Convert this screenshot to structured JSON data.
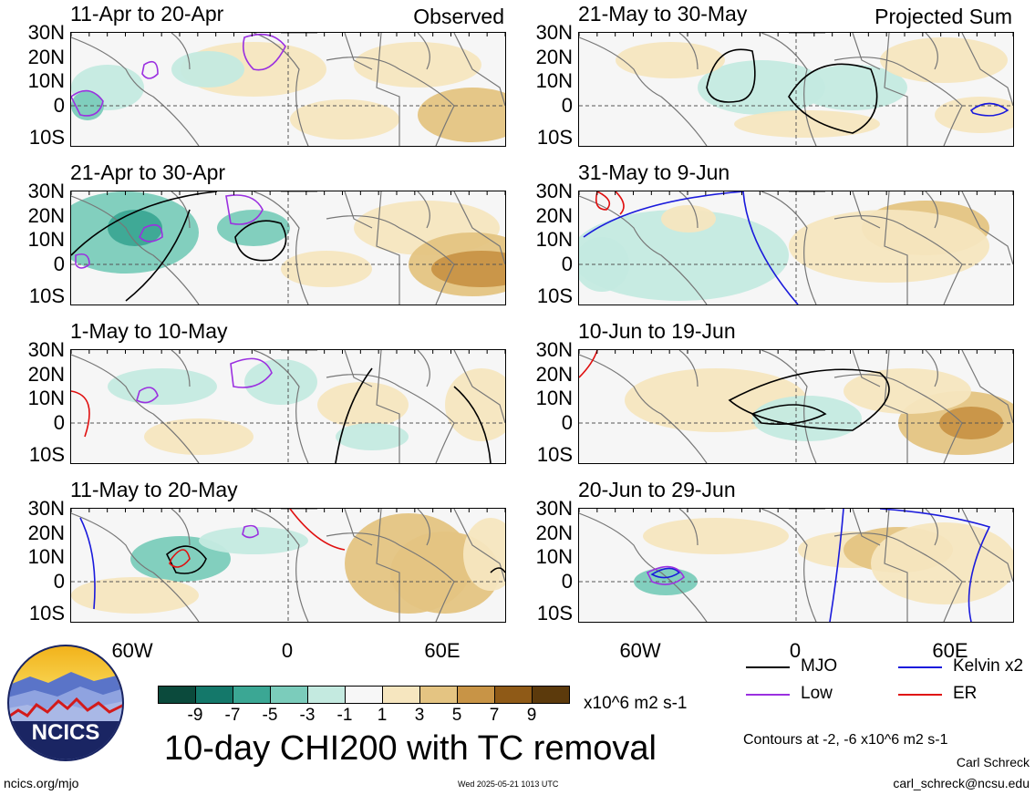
{
  "panels": [
    {
      "title": "11-Apr to 20-Apr",
      "tag": "Observed"
    },
    {
      "title": "21-Apr to 30-Apr",
      "tag": ""
    },
    {
      "title": "1-May to 10-May",
      "tag": ""
    },
    {
      "title": "11-May to 20-May",
      "tag": ""
    },
    {
      "title": "21-May to 30-May",
      "tag": "Projected Sum"
    },
    {
      "title": "31-May to 9-Jun",
      "tag": ""
    },
    {
      "title": "10-Jun to 19-Jun",
      "tag": ""
    },
    {
      "title": "20-Jun to 29-Jun",
      "tag": ""
    }
  ],
  "lat_labels": [
    "30N",
    "20N",
    "10N",
    "0",
    "10S"
  ],
  "lon_labels": [
    "60W",
    "0",
    "60E"
  ],
  "colorbar": {
    "labels": [
      "-9",
      "-7",
      "-5",
      "-3",
      "-1",
      "1",
      "3",
      "5",
      "7",
      "9"
    ],
    "colors": [
      "#0b4a3c",
      "#14786a",
      "#3ba794",
      "#7bccbb",
      "#c4eae0",
      "#f7f7f7",
      "#f6e6bf",
      "#e4c482",
      "#c89446",
      "#8f5a17",
      "#5c3a0c"
    ],
    "units": "x10^6 m2 s-1"
  },
  "legend": {
    "mjo": "MJO",
    "mjo_color": "#000000",
    "low": "Low",
    "low_color": "#9b30e0",
    "kelvin": "Kelvin x2",
    "kelvin_color": "#1a1adc",
    "er": "ER",
    "er_color": "#e01010"
  },
  "contours_note": "Contours at -2, -6 x10^6 m2 s-1",
  "title": "10-day CHI200 with TC removal",
  "logo_text": "NCICS",
  "footer": {
    "url": "ncics.org/mjo",
    "timestamp": "Wed 2025-05-21 1013 UTC",
    "author": "Carl Schreck",
    "email": "carl_schreck@ncsu.edu"
  }
}
